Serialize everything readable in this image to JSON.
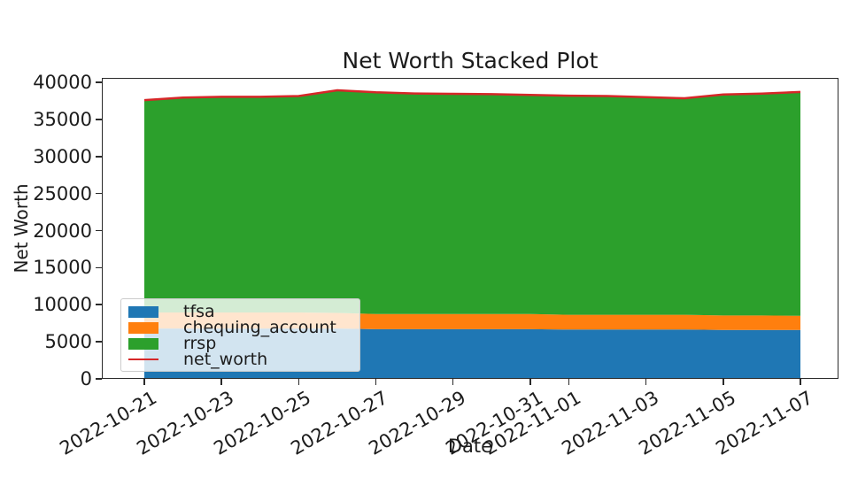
{
  "chart_data": {
    "type": "area",
    "stacked": true,
    "title": "Net Worth Stacked Plot",
    "xlabel": "Date",
    "ylabel": "Net Worth",
    "x": [
      "2022-10-21",
      "2022-10-22",
      "2022-10-23",
      "2022-10-24",
      "2022-10-25",
      "2022-10-26",
      "2022-10-27",
      "2022-10-28",
      "2022-10-29",
      "2022-10-30",
      "2022-10-31",
      "2022-11-01",
      "2022-11-02",
      "2022-11-03",
      "2022-11-04",
      "2022-11-05",
      "2022-11-06",
      "2022-11-07"
    ],
    "series": [
      {
        "name": "tfsa",
        "color": "#1f77b4",
        "values": [
          6800,
          6800,
          6800,
          6800,
          6800,
          6800,
          6700,
          6700,
          6700,
          6700,
          6700,
          6650,
          6650,
          6650,
          6650,
          6600,
          6600,
          6600
        ]
      },
      {
        "name": "chequing_account",
        "color": "#ff7f0e",
        "values": [
          2150,
          2150,
          2150,
          2150,
          2150,
          2100,
          2050,
          2050,
          2050,
          2050,
          2050,
          2000,
          2000,
          2000,
          2000,
          1950,
          1950,
          1900
        ]
      },
      {
        "name": "rrsp",
        "color": "#2ca02c",
        "values": [
          28650,
          29000,
          29100,
          29100,
          29200,
          30030,
          29900,
          29750,
          29700,
          29650,
          29550,
          29550,
          29500,
          29350,
          29200,
          29810,
          29930,
          30200
        ]
      }
    ],
    "overlay_line": {
      "name": "net_worth",
      "color": "#d62728",
      "values": [
        37600,
        37950,
        38050,
        38050,
        38150,
        38930,
        38650,
        38500,
        38450,
        38400,
        38300,
        38200,
        38150,
        38000,
        37850,
        38360,
        38480,
        38700
      ]
    },
    "ylim": [
      0,
      40600
    ],
    "yticks": [
      0,
      5000,
      10000,
      15000,
      20000,
      25000,
      30000,
      35000,
      40000
    ],
    "xticks": [
      {
        "label": "2022-10-21",
        "day_index": 0
      },
      {
        "label": "2022-10-23",
        "day_index": 2
      },
      {
        "label": "2022-10-25",
        "day_index": 4
      },
      {
        "label": "2022-10-27",
        "day_index": 6
      },
      {
        "label": "2022-10-29",
        "day_index": 8
      },
      {
        "label": "2022-10-31",
        "day_index": 10
      },
      {
        "label": "2022-11-01",
        "day_index": 11
      },
      {
        "label": "2022-11-03",
        "day_index": 13
      },
      {
        "label": "2022-11-05",
        "day_index": 15
      },
      {
        "label": "2022-11-07",
        "day_index": 17
      }
    ],
    "legend": {
      "position": "lower-left",
      "entries": [
        {
          "label": "tfsa",
          "color": "#1f77b4",
          "type": "patch"
        },
        {
          "label": "chequing_account",
          "color": "#ff7f0e",
          "type": "patch"
        },
        {
          "label": "rrsp",
          "color": "#2ca02c",
          "type": "patch"
        },
        {
          "label": "net_worth",
          "color": "#d62728",
          "type": "line"
        }
      ]
    },
    "grid": false,
    "colors": {
      "spine": "#2a2a2a",
      "text": "#1c1c1c",
      "legend_border": "#cccccc",
      "legend_background": "rgba(255,255,255,0.8)"
    }
  }
}
